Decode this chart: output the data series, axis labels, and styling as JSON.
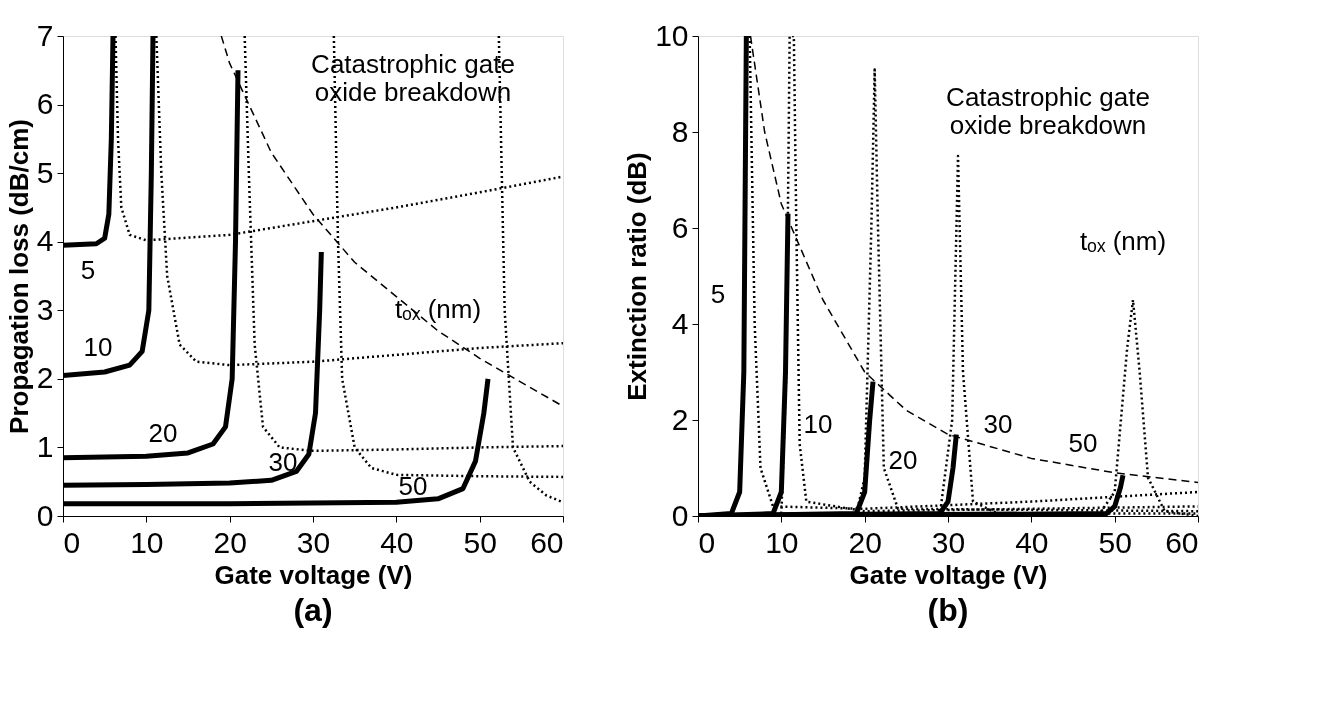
{
  "chart_data": [
    {
      "type": "line",
      "title": "(a)",
      "xlabel": "Gate voltage (V)",
      "ylabel": "Propagation loss (dB/cm)",
      "xlim": [
        0,
        60
      ],
      "ylim": [
        0,
        7
      ],
      "xticks": [
        0,
        10,
        20,
        30,
        40,
        50,
        60
      ],
      "yticks": [
        0,
        1,
        2,
        3,
        4,
        5,
        6,
        7
      ],
      "grid": false,
      "series": [
        {
          "color": "#000000",
          "line_style": "solid",
          "x": [
            0,
            4,
            5,
            5.5,
            5.8,
            6
          ],
          "values": [
            3.95,
            3.97,
            4.05,
            4.4,
            5.5,
            7
          ]
        },
        {
          "color": "#000000",
          "line_style": "dotted",
          "x": [
            6.3,
            6.6,
            7,
            8,
            10,
            20,
            30,
            40,
            50,
            60
          ],
          "values": [
            7,
            5.5,
            4.5,
            4.1,
            4.02,
            4.1,
            4.3,
            4.5,
            4.72,
            4.95
          ]
        },
        {
          "color": "#000000",
          "line_style": "solid",
          "x": [
            0,
            5,
            8,
            9.5,
            10.3,
            10.6,
            10.8
          ],
          "values": [
            2.05,
            2.1,
            2.2,
            2.4,
            3,
            5,
            7
          ]
        },
        {
          "color": "#000000",
          "line_style": "dotted",
          "x": [
            11.2,
            11.8,
            12.5,
            14,
            16,
            20,
            30,
            40,
            50,
            60
          ],
          "values": [
            7,
            5,
            3.5,
            2.5,
            2.25,
            2.2,
            2.25,
            2.35,
            2.45,
            2.52
          ]
        },
        {
          "color": "#000000",
          "line_style": "solid",
          "x": [
            0,
            10,
            15,
            18,
            19.5,
            20.3,
            20.7,
            21
          ],
          "values": [
            0.85,
            0.87,
            0.92,
            1.05,
            1.3,
            2,
            4,
            6.5
          ]
        },
        {
          "color": "#000000",
          "line_style": "dotted",
          "x": [
            21.8,
            22.3,
            23,
            24,
            26,
            30,
            40,
            50,
            60
          ],
          "values": [
            7,
            5,
            2.5,
            1.3,
            1.0,
            0.95,
            0.97,
            1.0,
            1.02
          ]
        },
        {
          "color": "#000000",
          "line_style": "solid",
          "x": [
            0,
            10,
            20,
            25,
            28,
            29.5,
            30.3,
            30.8,
            31
          ],
          "values": [
            0.45,
            0.46,
            0.48,
            0.52,
            0.65,
            0.9,
            1.5,
            3,
            3.85
          ]
        },
        {
          "color": "#000000",
          "line_style": "dotted",
          "x": [
            32.5,
            33,
            33.5,
            35,
            37,
            40,
            50,
            60
          ],
          "values": [
            7,
            4,
            2,
            1,
            0.7,
            0.6,
            0.58,
            0.57
          ]
        },
        {
          "color": "#000000",
          "line_style": "solid",
          "x": [
            0,
            20,
            40,
            45,
            48,
            49.5,
            50.5,
            51
          ],
          "values": [
            0.18,
            0.18,
            0.2,
            0.25,
            0.4,
            0.8,
            1.5,
            2.0
          ]
        },
        {
          "color": "#000000",
          "line_style": "dotted",
          "x": [
            52.3,
            53,
            54,
            56,
            58,
            60
          ],
          "values": [
            7,
            3,
            1,
            0.5,
            0.3,
            0.2
          ]
        },
        {
          "color": "#000000",
          "line_style": "dashed",
          "x": [
            19,
            20,
            25,
            30,
            35,
            40,
            45,
            50,
            55,
            60
          ],
          "values": [
            7,
            6.6,
            5.3,
            4.4,
            3.7,
            3.2,
            2.7,
            2.3,
            1.95,
            1.6
          ]
        }
      ],
      "annotations": [
        "5",
        "10",
        "20",
        "30",
        "50",
        "Catastrophic gate\noxide breakdown",
        "tₒₓ (nm)"
      ]
    },
    {
      "type": "line",
      "title": "(b)",
      "xlabel": "Gate voltage (V)",
      "ylabel": "Extinction ratio (dB)",
      "xlim": [
        0,
        60
      ],
      "ylim": [
        0,
        10
      ],
      "xticks": [
        0,
        10,
        20,
        30,
        40,
        50,
        60
      ],
      "yticks": [
        0,
        2,
        4,
        6,
        8,
        10
      ],
      "grid": false,
      "series": [
        {
          "color": "#000000",
          "line_style": "solid",
          "x": [
            0,
            4,
            5,
            5.5,
            5.8
          ],
          "values": [
            0,
            0.05,
            0.5,
            3,
            10
          ]
        },
        {
          "color": "#000000",
          "line_style": "dotted",
          "x": [
            6.2,
            6.8,
            7.5,
            9,
            20,
            40,
            60
          ],
          "values": [
            10,
            4,
            1,
            0.2,
            0.15,
            0.3,
            0.5
          ]
        },
        {
          "color": "#000000",
          "line_style": "solid",
          "x": [
            0,
            9,
            10,
            10.5,
            10.8
          ],
          "values": [
            0,
            0.05,
            0.5,
            3,
            6.3
          ]
        },
        {
          "color": "#000000",
          "line_style": "dotted",
          "x": [
            10,
            10.6,
            11,
            11.5,
            11.8,
            12.2,
            13,
            20,
            40,
            60
          ],
          "values": [
            0.05,
            3,
            10,
            10,
            6,
            1.5,
            0.3,
            0.1,
            0.15,
            0.2
          ]
        },
        {
          "color": "#000000",
          "line_style": "solid",
          "x": [
            0,
            19,
            20,
            20.6,
            21
          ],
          "values": [
            0,
            0.05,
            0.5,
            2,
            2.8
          ]
        },
        {
          "color": "#000000",
          "line_style": "dotted",
          "x": [
            19,
            20,
            20.8,
            21.2,
            21.6,
            22.3,
            24,
            60
          ],
          "values": [
            0.05,
            0.8,
            6,
            9.3,
            6,
            1,
            0.15,
            0.1
          ]
        },
        {
          "color": "#000000",
          "line_style": "solid",
          "x": [
            0,
            29,
            30,
            30.6,
            31
          ],
          "values": [
            0,
            0.05,
            0.3,
            1,
            1.7
          ]
        },
        {
          "color": "#000000",
          "line_style": "dotted",
          "x": [
            29,
            30.5,
            31.2,
            31.8,
            33,
            36,
            60
          ],
          "values": [
            0,
            2,
            7.5,
            3,
            0.3,
            0.05,
            0.05
          ]
        },
        {
          "color": "#000000",
          "line_style": "solid",
          "x": [
            0,
            49,
            50,
            50.7,
            51
          ],
          "values": [
            0,
            0.05,
            0.2,
            0.6,
            0.85
          ]
        },
        {
          "color": "#000000",
          "line_style": "dotted",
          "x": [
            48,
            50,
            51.5,
            52.2,
            53,
            54,
            56,
            60
          ],
          "values": [
            0,
            0.5,
            3.5,
            4.5,
            3,
            0.8,
            0.1,
            0
          ]
        },
        {
          "color": "#000000",
          "line_style": "dashed",
          "x": [
            6.3,
            8,
            10,
            15,
            20,
            25,
            30,
            40,
            50,
            60
          ],
          "values": [
            10,
            8,
            6.5,
            4.5,
            3,
            2.2,
            1.7,
            1.2,
            0.9,
            0.7
          ]
        }
      ],
      "annotations": [
        "5",
        "10",
        "20",
        "30",
        "50",
        "Catastrophic gate\noxide breakdown",
        "tₒₓ (nm)"
      ]
    }
  ]
}
